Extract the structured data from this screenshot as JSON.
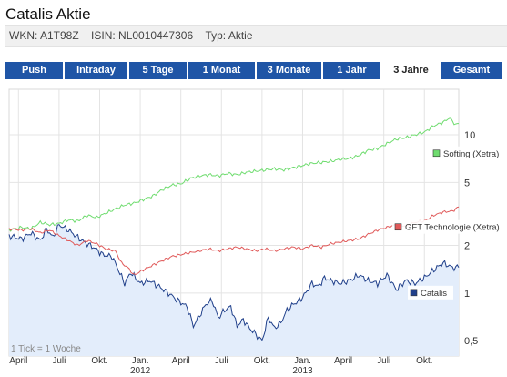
{
  "header": {
    "title": "Catalis Aktie",
    "wkn": "WKN: A1T98Z",
    "isin": "ISIN: NL0010447306",
    "typ": "Typ: Aktie"
  },
  "tabs": [
    {
      "label": "Push",
      "active": false
    },
    {
      "label": "Intraday",
      "active": false
    },
    {
      "label": "5 Tage",
      "active": false
    },
    {
      "label": "1 Monat",
      "active": false
    },
    {
      "label": "3 Monate",
      "active": false
    },
    {
      "label": "1 Jahr",
      "active": false
    },
    {
      "label": "3 Jahre",
      "active": true
    },
    {
      "label": "Gesamt",
      "active": false
    }
  ],
  "chart_data": {
    "type": "line",
    "yscale": "log",
    "ylim": [
      0.4,
      17
    ],
    "y_ticks": [
      "0,5",
      "1",
      "2",
      "5",
      "10"
    ],
    "y_tick_values": [
      0.5,
      1,
      2,
      5,
      10
    ],
    "x_ticks": [
      {
        "label": "April",
        "week": 3
      },
      {
        "label": "Juli",
        "week": 16
      },
      {
        "label": "Okt.",
        "week": 29
      },
      {
        "label": "Jan.",
        "sub": "2012",
        "week": 42
      },
      {
        "label": "April",
        "week": 55
      },
      {
        "label": "Juli",
        "week": 68
      },
      {
        "label": "Okt.",
        "week": 81
      },
      {
        "label": "Jan.",
        "sub": "2013",
        "week": 94
      },
      {
        "label": "April",
        "week": 107
      },
      {
        "label": "Juli",
        "week": 120
      },
      {
        "label": "Okt.",
        "week": 133
      }
    ],
    "x_range": [
      0,
      144
    ],
    "note": "1 Tick = 1 Woche",
    "colors": {
      "catalis": "#1f3f8a",
      "catalis_fill": "#e3edfb",
      "gft": "#e05a5a",
      "softing": "#6fdc6f",
      "grid": "#e4e4e4"
    },
    "series": [
      {
        "name": "Catalis",
        "legend_label": "Catalis",
        "anchors": [
          [
            0,
            2.3
          ],
          [
            4,
            2.2
          ],
          [
            7,
            2.4
          ],
          [
            10,
            2.15
          ],
          [
            12,
            2.55
          ],
          [
            14,
            2.25
          ],
          [
            16,
            2.7
          ],
          [
            19,
            2.5
          ],
          [
            22,
            2.25
          ],
          [
            24,
            2.1
          ],
          [
            27,
            1.95
          ],
          [
            30,
            1.75
          ],
          [
            33,
            1.7
          ],
          [
            35,
            1.4
          ],
          [
            37,
            1.15
          ],
          [
            39,
            1.35
          ],
          [
            42,
            1.15
          ],
          [
            45,
            1.2
          ],
          [
            48,
            1.1
          ],
          [
            51,
            1.0
          ],
          [
            54,
            0.9
          ],
          [
            57,
            0.82
          ],
          [
            59,
            0.62
          ],
          [
            61,
            0.72
          ],
          [
            63,
            0.85
          ],
          [
            65,
            0.9
          ],
          [
            67,
            0.7
          ],
          [
            69,
            0.78
          ],
          [
            71,
            0.82
          ],
          [
            73,
            0.62
          ],
          [
            75,
            0.68
          ],
          [
            77,
            0.6
          ],
          [
            79,
            0.55
          ],
          [
            81,
            0.5
          ],
          [
            83,
            0.7
          ],
          [
            85,
            0.6
          ],
          [
            87,
            0.65
          ],
          [
            89,
            0.78
          ],
          [
            91,
            0.85
          ],
          [
            93,
            0.9
          ],
          [
            95,
            1.0
          ],
          [
            97,
            1.15
          ],
          [
            99,
            1.1
          ],
          [
            101,
            1.25
          ],
          [
            103,
            1.2
          ],
          [
            106,
            1.15
          ],
          [
            109,
            1.2
          ],
          [
            112,
            1.3
          ],
          [
            115,
            1.2
          ],
          [
            118,
            1.15
          ],
          [
            121,
            1.3
          ],
          [
            124,
            1.05
          ],
          [
            127,
            1.2
          ],
          [
            130,
            1.15
          ],
          [
            133,
            1.25
          ],
          [
            136,
            1.4
          ],
          [
            139,
            1.55
          ],
          [
            142,
            1.45
          ],
          [
            144,
            1.45
          ]
        ],
        "legend_value": 1.0
      },
      {
        "name": "GFT Technologie (Xetra)",
        "legend_label": "GFT Technologie (Xetra)",
        "anchors": [
          [
            0,
            2.55
          ],
          [
            4,
            2.5
          ],
          [
            7,
            2.55
          ],
          [
            10,
            2.4
          ],
          [
            13,
            2.5
          ],
          [
            16,
            2.3
          ],
          [
            19,
            2.15
          ],
          [
            22,
            2.0
          ],
          [
            25,
            2.15
          ],
          [
            28,
            2.05
          ],
          [
            31,
            1.9
          ],
          [
            34,
            1.85
          ],
          [
            36,
            1.55
          ],
          [
            38,
            1.45
          ],
          [
            40,
            1.3
          ],
          [
            43,
            1.4
          ],
          [
            46,
            1.5
          ],
          [
            49,
            1.6
          ],
          [
            52,
            1.7
          ],
          [
            55,
            1.75
          ],
          [
            58,
            1.8
          ],
          [
            61,
            1.85
          ],
          [
            64,
            1.9
          ],
          [
            67,
            1.85
          ],
          [
            70,
            1.9
          ],
          [
            73,
            1.95
          ],
          [
            76,
            1.9
          ],
          [
            79,
            1.85
          ],
          [
            82,
            1.9
          ],
          [
            85,
            1.85
          ],
          [
            88,
            1.9
          ],
          [
            91,
            1.95
          ],
          [
            94,
            1.9
          ],
          [
            97,
            2.0
          ],
          [
            100,
            1.95
          ],
          [
            103,
            2.05
          ],
          [
            106,
            2.1
          ],
          [
            109,
            2.15
          ],
          [
            112,
            2.2
          ],
          [
            115,
            2.35
          ],
          [
            118,
            2.5
          ],
          [
            121,
            2.6
          ],
          [
            124,
            2.7
          ],
          [
            127,
            2.65
          ],
          [
            130,
            2.8
          ],
          [
            133,
            2.85
          ],
          [
            136,
            3.1
          ],
          [
            139,
            3.25
          ],
          [
            142,
            3.3
          ],
          [
            144,
            3.5
          ]
        ],
        "legend_value": 2.6
      },
      {
        "name": "Softing (Xetra)",
        "legend_label": "Softing (Xetra)",
        "anchors": [
          [
            0,
            2.5
          ],
          [
            4,
            2.6
          ],
          [
            7,
            2.55
          ],
          [
            10,
            2.8
          ],
          [
            13,
            2.7
          ],
          [
            16,
            2.75
          ],
          [
            19,
            2.9
          ],
          [
            22,
            2.85
          ],
          [
            25,
            3.1
          ],
          [
            28,
            3.0
          ],
          [
            31,
            3.2
          ],
          [
            34,
            3.4
          ],
          [
            37,
            3.6
          ],
          [
            40,
            3.7
          ],
          [
            43,
            3.9
          ],
          [
            46,
            4.1
          ],
          [
            49,
            4.5
          ],
          [
            52,
            4.8
          ],
          [
            55,
            4.9
          ],
          [
            58,
            5.3
          ],
          [
            61,
            5.5
          ],
          [
            64,
            5.6
          ],
          [
            67,
            5.5
          ],
          [
            70,
            5.7
          ],
          [
            73,
            5.6
          ],
          [
            76,
            5.8
          ],
          [
            79,
            5.9
          ],
          [
            82,
            6.0
          ],
          [
            85,
            6.1
          ],
          [
            88,
            6.0
          ],
          [
            91,
            6.2
          ],
          [
            94,
            6.4
          ],
          [
            97,
            6.6
          ],
          [
            100,
            6.7
          ],
          [
            103,
            6.8
          ],
          [
            106,
            7.0
          ],
          [
            109,
            7.1
          ],
          [
            112,
            7.4
          ],
          [
            115,
            8.0
          ],
          [
            118,
            8.2
          ],
          [
            121,
            8.8
          ],
          [
            124,
            9.4
          ],
          [
            127,
            9.6
          ],
          [
            130,
            10.0
          ],
          [
            133,
            10.4
          ],
          [
            136,
            11.4
          ],
          [
            139,
            12.0
          ],
          [
            141,
            12.8
          ],
          [
            143,
            11.6
          ],
          [
            144,
            11.8
          ]
        ],
        "legend_value": 7.6
      }
    ]
  }
}
